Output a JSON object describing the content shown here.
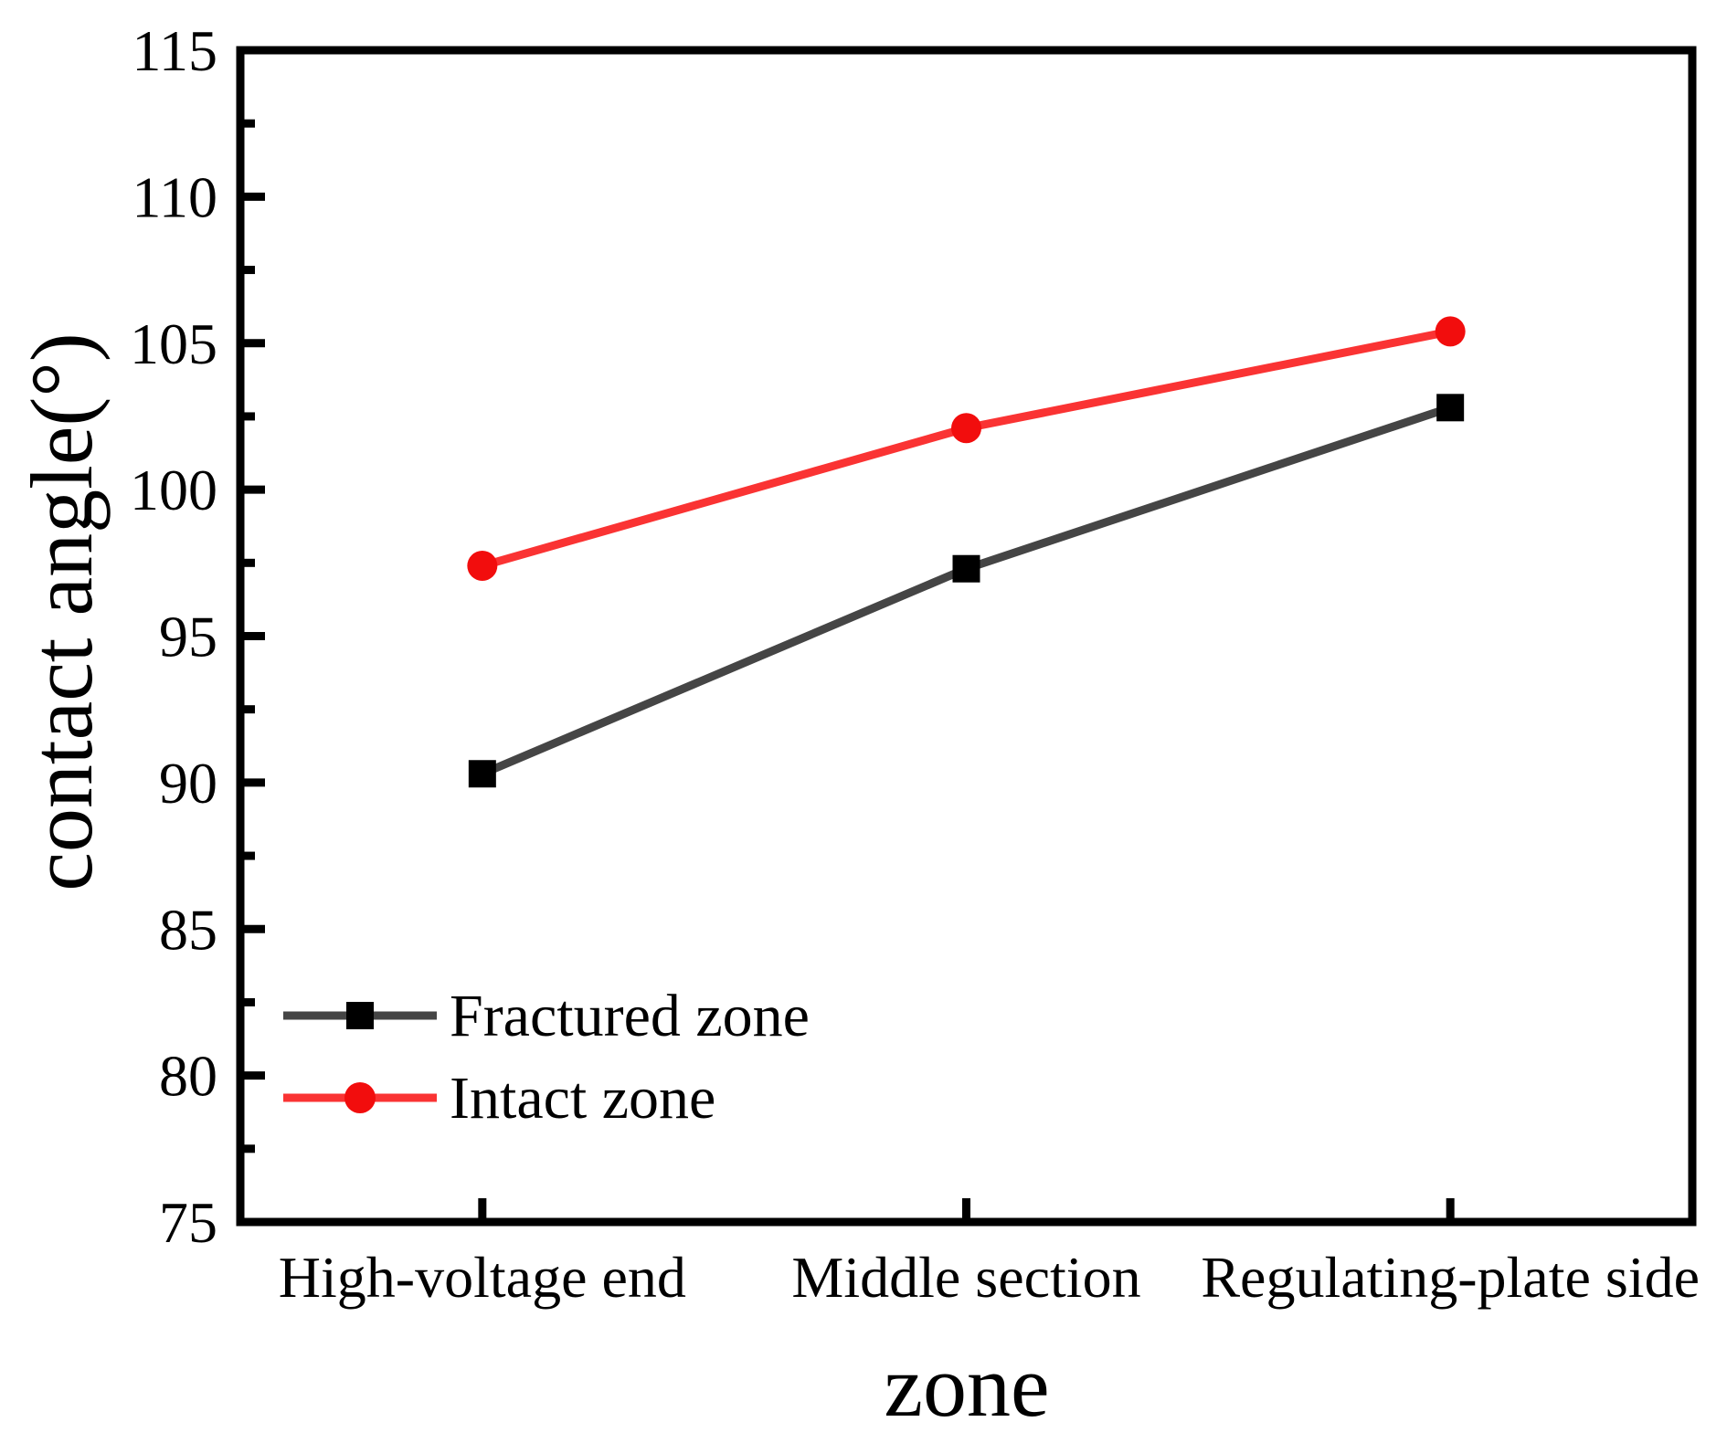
{
  "figure": {
    "background_color": "#ffffff",
    "frame_color": "#000000",
    "text_color": "#000000"
  },
  "chart_data": {
    "type": "line",
    "title": "",
    "xlabel": "zone",
    "ylabel": "contact angle(°)",
    "categories": [
      "High-voltage end",
      "Middle section",
      "Regulating-plate side"
    ],
    "series": [
      {
        "name": "Fractured zone",
        "marker": "square",
        "line_color": "#454545",
        "marker_color": "#000000",
        "values": [
          90.3,
          97.3,
          102.8
        ]
      },
      {
        "name": "Intact zone",
        "marker": "circle",
        "line_color": "#fa3333",
        "marker_color": "#f20d0d",
        "values": [
          97.4,
          102.1,
          105.4
        ]
      }
    ],
    "ylim": [
      75,
      115
    ],
    "y_major_step": 5,
    "y_minor_step": 2.5,
    "y_tick_labels": [
      "75",
      "80",
      "85",
      "90",
      "95",
      "100",
      "105",
      "110",
      "115"
    ],
    "grid": false,
    "legend_position": "inside lower left",
    "ticks_direction": "in"
  }
}
